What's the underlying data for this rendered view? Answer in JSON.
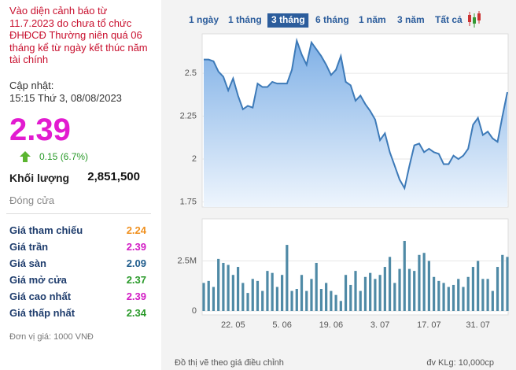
{
  "sidebar": {
    "warning": "Vào diện cảnh báo từ 11.7.2023 do chưa tổ chức ĐHĐCĐ Thường niên quá 06 tháng kể từ ngày kết thúc năm tài chính",
    "updated_label": "Cập nhật:",
    "updated_time": "15:15 Thứ 3, 08/08/2023",
    "price": "2.39",
    "change": "0.15 (6.7%)",
    "volume_label": "Khối lượng",
    "volume": "2,851,500",
    "close_label": "Đóng cửa",
    "rows": [
      {
        "label": "Giá tham chiếu",
        "value": "2.24",
        "color": "#f0901e"
      },
      {
        "label": "Giá trần",
        "value": "2.39",
        "color": "#d21bc4"
      },
      {
        "label": "Giá sàn",
        "value": "2.09",
        "color": "#1f5c8c"
      },
      {
        "label": "Giá mở cửa",
        "value": "2.37",
        "color": "#2a9a2a"
      },
      {
        "label": "Giá cao nhất",
        "value": "2.39",
        "color": "#d21bc4"
      },
      {
        "label": "Giá thấp nhất",
        "value": "2.34",
        "color": "#2a9a2a"
      }
    ],
    "unit_note": "Đơn vị giá: 1000 VNĐ"
  },
  "tabs": [
    "1 ngày",
    "1 tháng",
    "3 tháng",
    "6 tháng",
    "1 năm",
    "3 năm",
    "Tất cả"
  ],
  "active_tab": 2,
  "chart_data": [
    {
      "type": "area",
      "color": "#3d7ab8",
      "values": [
        2.58,
        2.58,
        2.57,
        2.51,
        2.48,
        2.4,
        2.47,
        2.37,
        2.29,
        2.31,
        2.3,
        2.44,
        2.42,
        2.42,
        2.45,
        2.44,
        2.44,
        2.44,
        2.52,
        2.69,
        2.61,
        2.55,
        2.68,
        2.64,
        2.6,
        2.55,
        2.49,
        2.52,
        2.6,
        2.45,
        2.43,
        2.34,
        2.37,
        2.32,
        2.28,
        2.23,
        2.11,
        2.15,
        2.04,
        1.96,
        1.88,
        1.83,
        1.96,
        2.08,
        2.09,
        2.04,
        2.06,
        2.04,
        2.03,
        1.97,
        1.97,
        2.02,
        2.0,
        2.02,
        2.06,
        2.2,
        2.24,
        2.14,
        2.16,
        2.12,
        2.1,
        2.25,
        2.39
      ],
      "ylim": [
        1.72,
        2.73
      ],
      "yticks": [
        1.75,
        2,
        2.25,
        2.5
      ],
      "grid": true
    },
    {
      "type": "bar",
      "color": "#4f8aa6",
      "categories": [
        null,
        null,
        null,
        null,
        null,
        null,
        "22. 05",
        null,
        null,
        null,
        null,
        null,
        null,
        null,
        null,
        null,
        "5. 06",
        null,
        null,
        null,
        null,
        null,
        null,
        null,
        null,
        null,
        "19. 06",
        null,
        null,
        null,
        null,
        null,
        null,
        null,
        null,
        null,
        "3. 07",
        null,
        null,
        null,
        null,
        null,
        null,
        null,
        null,
        null,
        "17. 07",
        null,
        null,
        null,
        null,
        null,
        null,
        null,
        null,
        null,
        "31. 07",
        null,
        null,
        null,
        null,
        null,
        null
      ],
      "values": [
        1400000,
        1500000,
        1200000,
        2600000,
        2400000,
        2300000,
        1800000,
        2200000,
        1400000,
        900000,
        1600000,
        1500000,
        1000000,
        2000000,
        1900000,
        1200000,
        1800000,
        3300000,
        1000000,
        1100000,
        1800000,
        1000000,
        1600000,
        2400000,
        1100000,
        1400000,
        1000000,
        800000,
        500000,
        1800000,
        1300000,
        2000000,
        1000000,
        1700000,
        1900000,
        1600000,
        1800000,
        2200000,
        2700000,
        1400000,
        2100000,
        3500000,
        2100000,
        2000000,
        2800000,
        2900000,
        2500000,
        1700000,
        1500000,
        1400000,
        1200000,
        1300000,
        1600000,
        1200000,
        1700000,
        2200000,
        2500000,
        1600000,
        1600000,
        1000000,
        2200000,
        2800000,
        2700000
      ],
      "ylim": [
        0,
        4600000
      ],
      "yticks": [
        0,
        {
          "value": 2500000,
          "label": "2.5M"
        }
      ],
      "grid": true
    }
  ],
  "footer": {
    "note": "Đồ thị vẽ theo giá điều chỉnh",
    "unit": "đv KLg: 10,000cp"
  }
}
